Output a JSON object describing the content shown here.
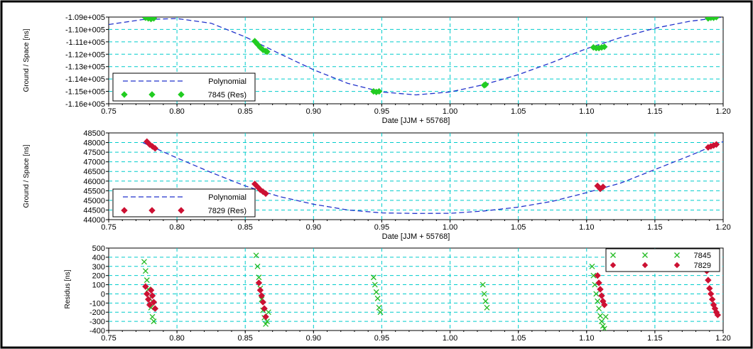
{
  "chart_data": [
    {
      "type": "line",
      "xlabel": "Date [JJM + 55768]",
      "ylabel": "Ground / Space [ns]",
      "xlim": [
        0.75,
        1.2
      ],
      "ylim": [
        -116000,
        -109000
      ],
      "xticks": [
        "0.75",
        "0.80",
        "0.85",
        "0.90",
        "0.95",
        "1.00",
        "1.05",
        "1.10",
        "1.15",
        "1.20"
      ],
      "yticks": [
        "-1.09e+005",
        "-1.10e+005",
        "-1.11e+005",
        "-1.12e+005",
        "-1.13e+005",
        "-1.14e+005",
        "-1.15e+005",
        "-1.16e+005"
      ],
      "grid": true,
      "legend_position": "bottom-left",
      "series": [
        {
          "name": "Polynomial",
          "style": "dashed-line",
          "color": "#2233cc",
          "x": [
            0.75,
            0.775,
            0.8,
            0.825,
            0.85,
            0.875,
            0.9,
            0.925,
            0.95,
            0.975,
            1.0,
            1.025,
            1.05,
            1.075,
            1.1,
            1.125,
            1.15,
            1.175,
            1.2
          ],
          "y": [
            -109600,
            -109200,
            -109120,
            -109500,
            -110600,
            -111950,
            -113250,
            -114350,
            -115050,
            -115280,
            -115050,
            -114450,
            -113650,
            -112650,
            -111550,
            -110650,
            -109900,
            -109350,
            -109000
          ]
        },
        {
          "name": "7845 (Res)",
          "style": "diamond-markers",
          "color": "#22cc22",
          "x": [
            0.777,
            0.779,
            0.781,
            0.783,
            0.857,
            0.859,
            0.861,
            0.863,
            0.865,
            0.866,
            0.944,
            0.946,
            0.948,
            1.025,
            1.026,
            1.105,
            1.107,
            1.109,
            1.111,
            1.113,
            1.189,
            1.191,
            1.193,
            1.195
          ],
          "y": [
            -109050,
            -109100,
            -109150,
            -109100,
            -110950,
            -111200,
            -111450,
            -111650,
            -111750,
            -111800,
            -115000,
            -115050,
            -115000,
            -114500,
            -114450,
            -111450,
            -111500,
            -111500,
            -111450,
            -111400,
            -109100,
            -109050,
            -109050,
            -109000
          ]
        }
      ]
    },
    {
      "type": "line",
      "xlabel": "Date [JJM + 55768]",
      "ylabel": "Ground / Space [ns]",
      "xlim": [
        0.75,
        1.2
      ],
      "ylim": [
        44000,
        48500
      ],
      "xticks": [
        "0.75",
        "0.80",
        "0.85",
        "0.90",
        "0.95",
        "1.00",
        "1.05",
        "1.10",
        "1.15",
        "1.20"
      ],
      "yticks": [
        "48500",
        "48000",
        "47500",
        "47000",
        "46500",
        "46000",
        "45500",
        "45000",
        "44500",
        "44000"
      ],
      "grid": true,
      "legend_position": "bottom-left",
      "series": [
        {
          "name": "Polynomial",
          "style": "dashed-line",
          "color": "#2233cc",
          "x": [
            0.775,
            0.8,
            0.825,
            0.85,
            0.875,
            0.9,
            0.925,
            0.95,
            0.975,
            1.0,
            1.025,
            1.05,
            1.075,
            1.1,
            1.125,
            1.15,
            1.175,
            1.2
          ],
          "y": [
            48000,
            47200,
            46450,
            45750,
            45200,
            44800,
            44500,
            44350,
            44320,
            44330,
            44450,
            44650,
            44950,
            45400,
            45900,
            46600,
            47300,
            48050
          ]
        },
        {
          "name": "7829 (Res)",
          "style": "diamond-markers",
          "color": "#cc1133",
          "x": [
            0.778,
            0.78,
            0.782,
            0.784,
            0.857,
            0.859,
            0.861,
            0.863,
            0.865,
            1.108,
            1.11,
            1.112,
            1.189,
            1.191,
            1.193,
            1.195
          ],
          "y": [
            48050,
            47900,
            47800,
            47700,
            45850,
            45700,
            45550,
            45450,
            45350,
            45750,
            45600,
            45700,
            47750,
            47800,
            47850,
            47900
          ]
        }
      ]
    },
    {
      "type": "scatter",
      "xlabel": "",
      "ylabel": "Residus [ns]",
      "xlim": [
        0.75,
        1.2
      ],
      "ylim": [
        -400,
        500
      ],
      "xticks": [
        "0.75",
        "0.80",
        "0.85",
        "0.90",
        "0.95",
        "1.00",
        "1.05",
        "1.10",
        "1.15",
        "1.20"
      ],
      "yticks": [
        "500",
        "400",
        "300",
        "200",
        "100",
        "0",
        "-100",
        "-200",
        "-300",
        "-400"
      ],
      "grid": true,
      "legend_position": "top-right",
      "series": [
        {
          "name": "7845",
          "style": "x-markers",
          "color": "#22bb22",
          "x": [
            0.776,
            0.777,
            0.778,
            0.779,
            0.78,
            0.781,
            0.782,
            0.783,
            0.858,
            0.859,
            0.86,
            0.861,
            0.862,
            0.863,
            0.864,
            0.865,
            0.866,
            0.867,
            0.944,
            0.945,
            0.946,
            0.947,
            0.948,
            0.949,
            1.024,
            1.025,
            1.026,
            1.027,
            1.104,
            1.105,
            1.106,
            1.107,
            1.108,
            1.109,
            1.11,
            1.111,
            1.112,
            1.113,
            1.114
          ],
          "y": [
            350,
            250,
            150,
            50,
            -50,
            -150,
            -250,
            -300,
            420,
            300,
            180,
            60,
            -60,
            -180,
            -260,
            -330,
            -300,
            -200,
            180,
            100,
            20,
            -50,
            -150,
            -200,
            100,
            0,
            -80,
            -150,
            300,
            200,
            100,
            0,
            -80,
            -160,
            -240,
            -300,
            -350,
            -380,
            -250
          ],
          "label": "7845"
        },
        {
          "name": "7829",
          "style": "diamond-markers",
          "color": "#cc1133",
          "x": [
            0.777,
            0.778,
            0.779,
            0.78,
            0.781,
            0.782,
            0.783,
            0.784,
            0.86,
            0.861,
            0.862,
            0.863,
            0.864,
            0.865,
            1.108,
            1.109,
            1.11,
            1.111,
            1.112,
            1.113,
            1.188,
            1.189,
            1.19,
            1.191,
            1.192,
            1.193,
            1.194,
            1.195,
            1.196
          ],
          "y": [
            80,
            0,
            -60,
            -120,
            40,
            -20,
            -90,
            -160,
            120,
            40,
            -20,
            -90,
            -160,
            -250,
            200,
            120,
            50,
            -20,
            -80,
            -120,
            250,
            150,
            60,
            0,
            -60,
            -120,
            -160,
            -200,
            -230
          ],
          "label": "7829"
        }
      ]
    }
  ]
}
